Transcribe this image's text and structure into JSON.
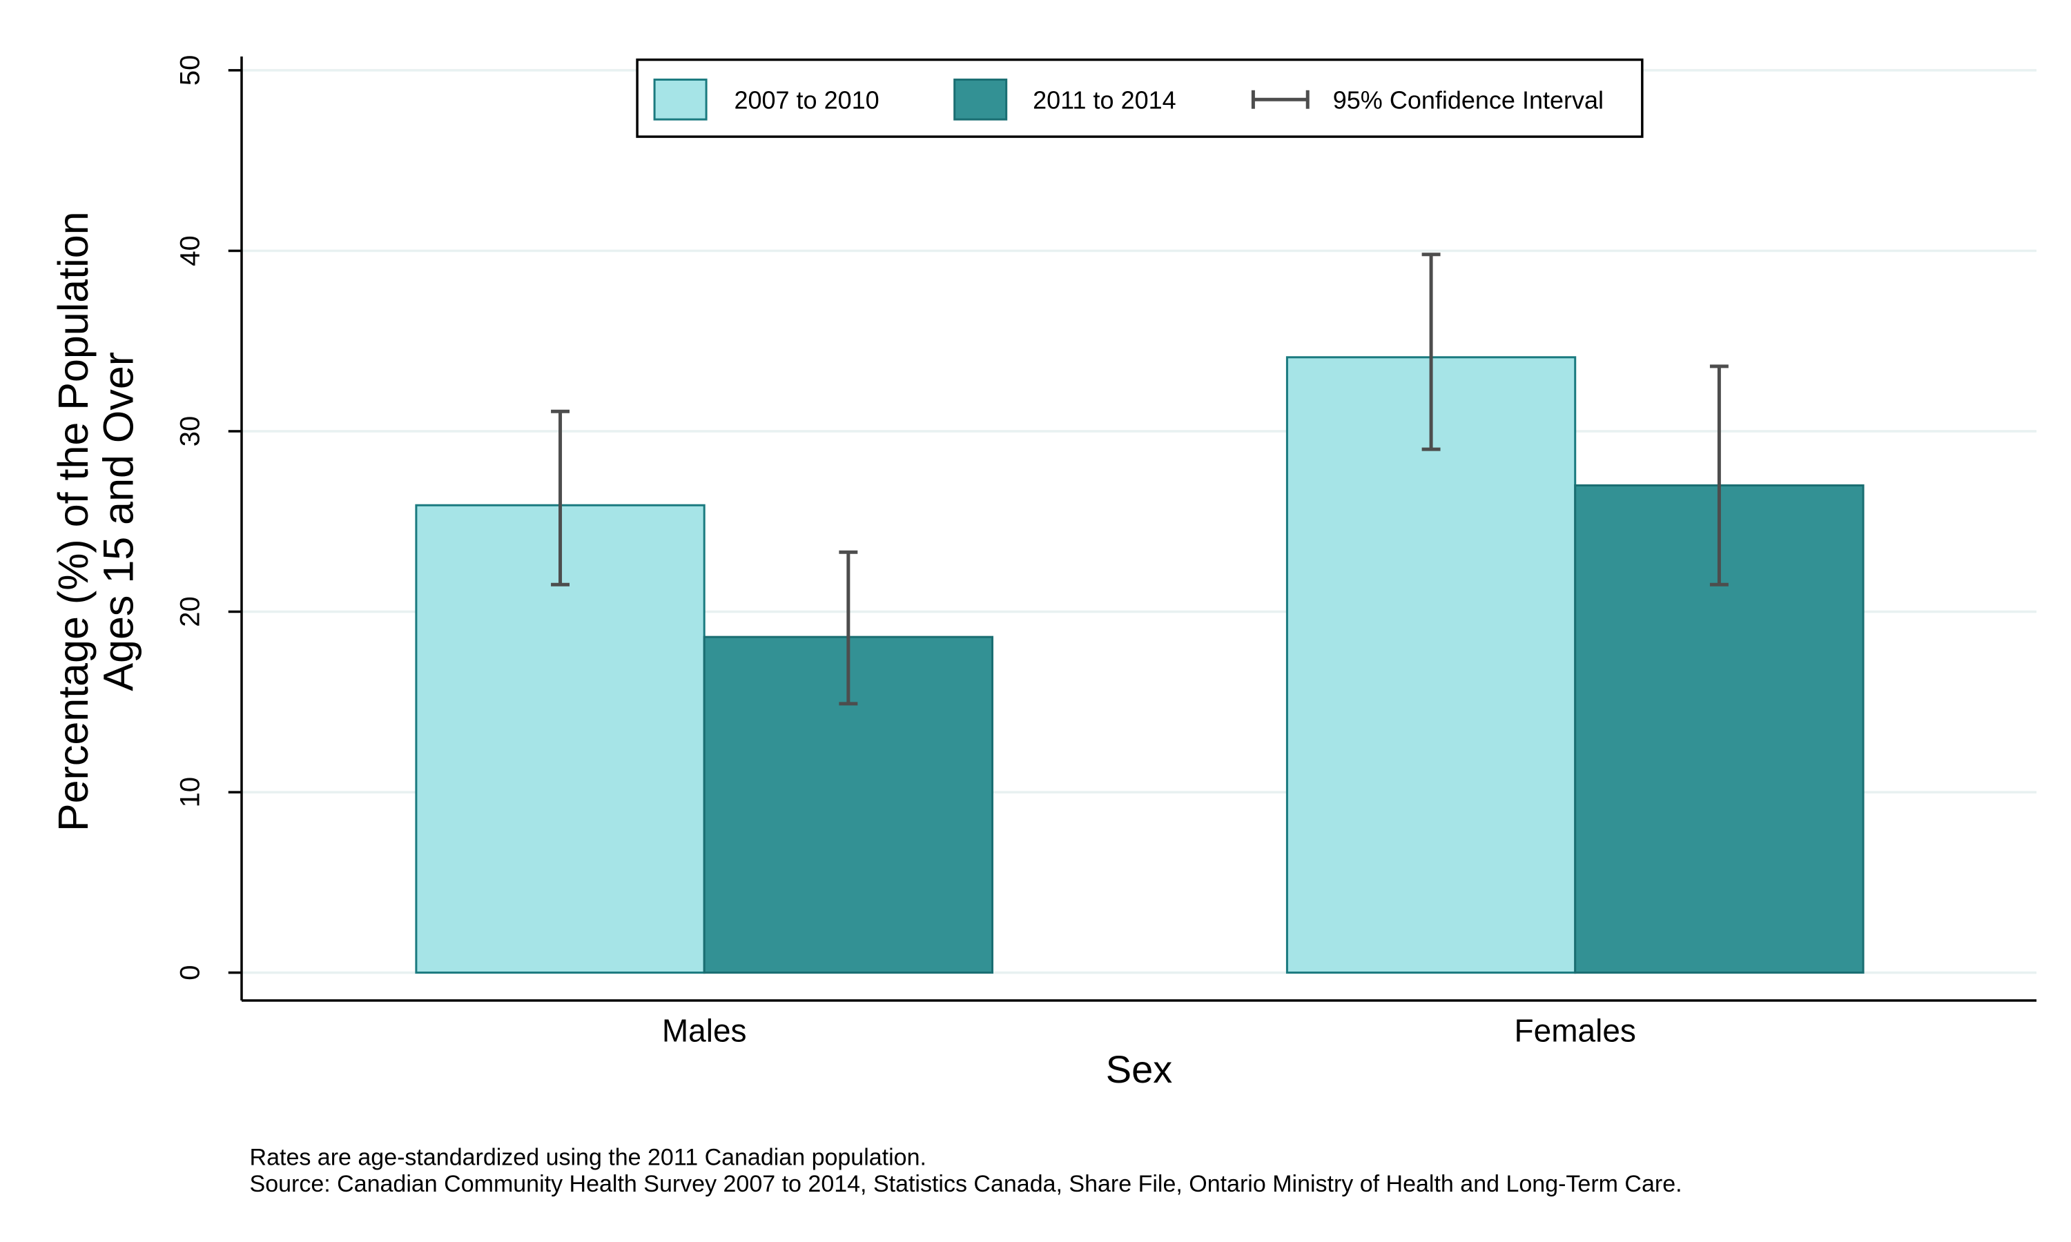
{
  "chart_data": {
    "type": "bar",
    "title": "",
    "xlabel": "Sex",
    "ylabel_lines": [
      "Percentage (%) of the Population",
      "Ages 15 and Over"
    ],
    "categories": [
      "Males",
      "Females"
    ],
    "ylim": [
      0,
      50
    ],
    "yticks": [
      0,
      10,
      20,
      30,
      40,
      50
    ],
    "grid": true,
    "legend_position": "top-center",
    "series": [
      {
        "name": "2007 to 2010",
        "color": "#a6e4e7",
        "edge_color": "#1a7a7f",
        "values": [
          25.9,
          34.1
        ],
        "ci_low": [
          21.5,
          29.0
        ],
        "ci_high": [
          31.1,
          39.8
        ]
      },
      {
        "name": "2011 to 2014",
        "color": "#339194",
        "edge_color": "#1a6e72",
        "values": [
          18.6,
          27.0
        ],
        "ci_low": [
          14.9,
          21.5
        ],
        "ci_high": [
          23.3,
          33.6
        ]
      }
    ],
    "ci_legend_label": "95% Confidence Interval",
    "ci_color": "#4d4d4d",
    "gridline_color": "#e8f1f1",
    "notes": [
      "Rates are age-standardized using the 2011 Canadian population.",
      "Source: Canadian Community Health Survey 2007 to 2014, Statistics Canada, Share File, Ontario Ministry of Health and Long-Term Care."
    ]
  }
}
